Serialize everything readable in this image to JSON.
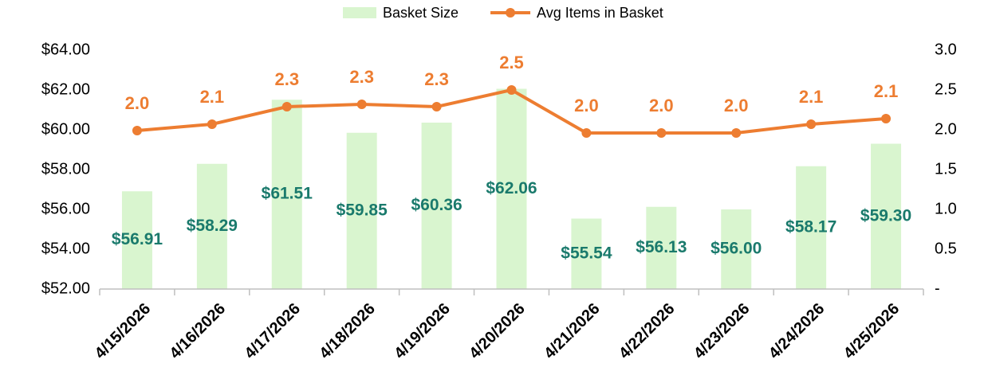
{
  "chart_data": {
    "type": "combo",
    "categories": [
      "4/15/2026",
      "4/16/2026",
      "4/17/2026",
      "4/18/2026",
      "4/19/2026",
      "4/20/2026",
      "4/21/2026",
      "4/22/2026",
      "4/23/2026",
      "4/24/2026",
      "4/25/2026"
    ],
    "series": [
      {
        "name": "Basket Size",
        "type": "bar",
        "color": "#d9f5cf",
        "values": [
          56.91,
          58.29,
          61.51,
          59.85,
          60.36,
          62.06,
          55.54,
          56.13,
          56.0,
          58.17,
          59.3
        ],
        "value_labels": [
          "$56.91",
          "$58.29",
          "$61.51",
          "$59.85",
          "$60.36",
          "$62.06",
          "$55.54",
          "$56.13",
          "$56.00",
          "$58.17",
          "$59.30"
        ],
        "label_color": "#1a7a6c"
      },
      {
        "name": "Avg Items in Basket",
        "type": "line",
        "axis": "y2",
        "color": "#ed7d31",
        "values": [
          1.99,
          2.07,
          2.29,
          2.32,
          2.29,
          2.5,
          1.96,
          1.96,
          1.96,
          2.07,
          2.14
        ],
        "value_labels": [
          "2.0",
          "2.1",
          "2.3",
          "2.3",
          "2.3",
          "2.5",
          "2.0",
          "2.0",
          "2.0",
          "2.1",
          "2.1"
        ]
      }
    ],
    "ylim": [
      52,
      64
    ],
    "yticks": [
      {
        "value": 52,
        "label": "$52.00"
      },
      {
        "value": 54,
        "label": "$54.00"
      },
      {
        "value": 56,
        "label": "$56.00"
      },
      {
        "value": 58,
        "label": "$58.00"
      },
      {
        "value": 60,
        "label": "$60.00"
      },
      {
        "value": 62,
        "label": "$62.00"
      },
      {
        "value": 64,
        "label": "$64.00"
      }
    ],
    "y2lim": [
      0,
      3
    ],
    "y2ticks": [
      {
        "value": 0,
        "label": "-"
      },
      0.5,
      {
        "value": 1,
        "label": "1.0"
      },
      1.5,
      {
        "value": 2,
        "label": "2.0"
      },
      2.5,
      {
        "value": 3,
        "label": "3.0"
      }
    ],
    "legend": "top",
    "grid": false
  }
}
